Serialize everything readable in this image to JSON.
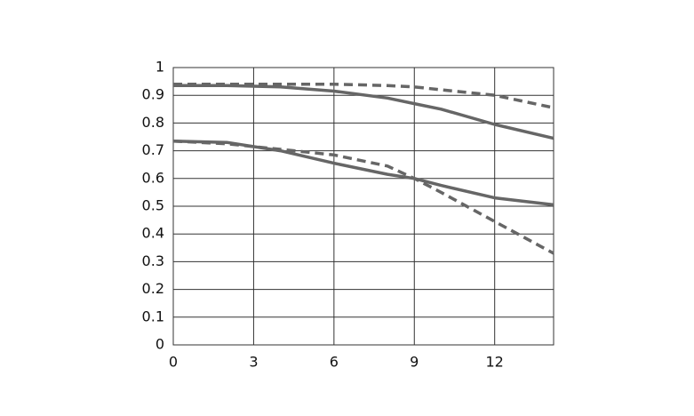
{
  "chart_data": {
    "type": "line",
    "x": [
      0,
      2,
      4,
      6,
      8,
      9,
      10,
      12,
      14.2
    ],
    "series": [
      {
        "color": "#666666",
        "dashed": false,
        "values": [
          0.935,
          0.935,
          0.93,
          0.915,
          0.89,
          0.87,
          0.85,
          0.795,
          0.745
        ]
      },
      {
        "color": "#666666",
        "dashed": true,
        "values": [
          0.94,
          0.94,
          0.94,
          0.94,
          0.935,
          0.93,
          0.92,
          0.9,
          0.855
        ]
      },
      {
        "color": "#666666",
        "dashed": false,
        "values": [
          0.735,
          0.73,
          0.7,
          0.655,
          0.615,
          0.6,
          0.575,
          0.53,
          0.505
        ]
      },
      {
        "color": "#666666",
        "dashed": true,
        "values": [
          0.735,
          0.725,
          0.705,
          0.685,
          0.645,
          0.6,
          0.55,
          0.445,
          0.33
        ]
      }
    ],
    "xlim": [
      0,
      14.2
    ],
    "xticks": [
      0,
      3,
      6,
      9,
      12
    ],
    "ylim": [
      0,
      1
    ],
    "yticks": [
      0,
      0.1,
      0.2,
      0.3,
      0.4,
      0.5,
      0.6,
      0.7,
      0.8,
      0.9,
      1
    ],
    "grid": true
  }
}
